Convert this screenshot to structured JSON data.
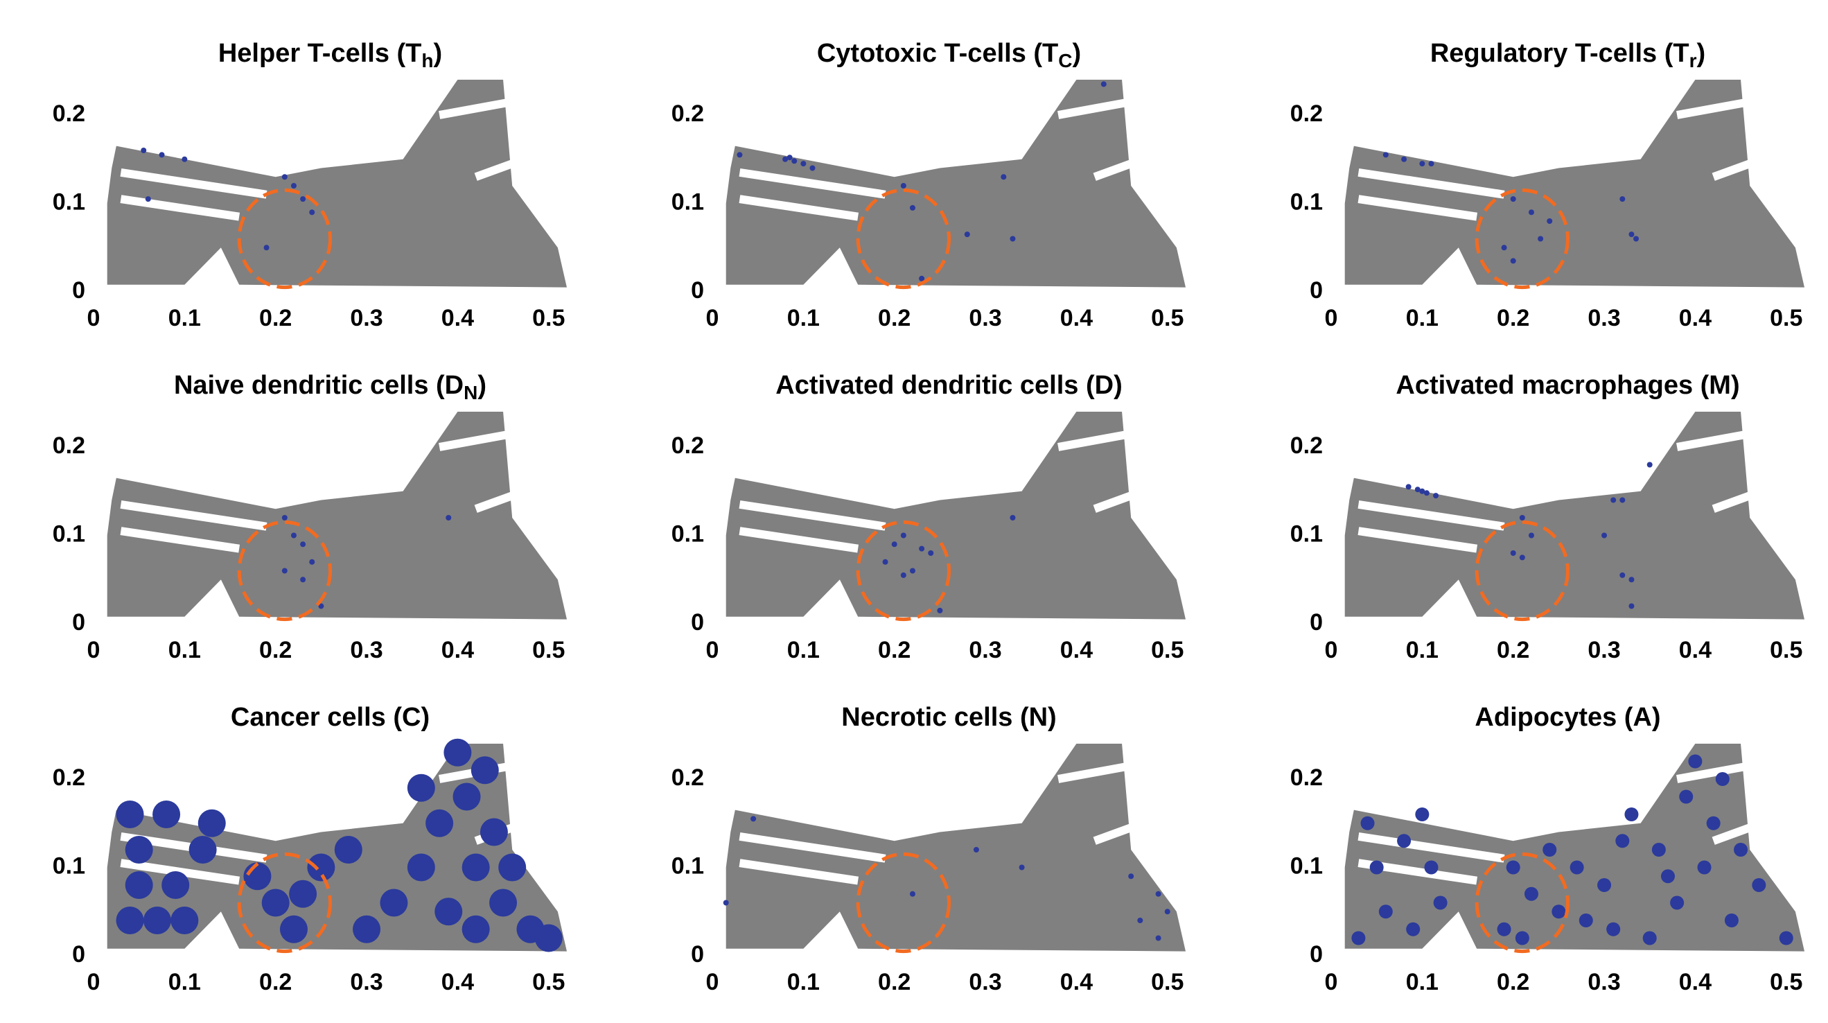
{
  "tissue": {
    "color": "#808080",
    "x": [
      0.015,
      0.1,
      0.14,
      0.16,
      0.52,
      0.51,
      0.46,
      0.45,
      0.4,
      0.34,
      0.25,
      0.2,
      0.025,
      0.02,
      0.015
    ],
    "y": [
      0.008,
      0.008,
      0.05,
      0.008,
      0.005,
      0.05,
      0.12,
      0.24,
      0.24,
      0.15,
      0.14,
      0.13,
      0.165,
      0.14,
      0.1
    ]
  },
  "chart_data": [
    {
      "type": "scatter",
      "title": [
        "Helper T-cells (T",
        "h",
        ")"
      ],
      "xlim": [
        0,
        0.52
      ],
      "ylim": [
        0,
        0.24
      ],
      "xticks": [
        0,
        0.1,
        0.2,
        0.3,
        0.4,
        0.5
      ],
      "yticks": [
        0,
        0.1,
        0.2
      ],
      "color": "#2b3a9c",
      "marker_size": 4,
      "annotation": {
        "cx": 0.21,
        "cy": 0.06,
        "rx": 0.05,
        "ry": 0.055,
        "color": "#f26b21"
      },
      "x": [
        0.055,
        0.075,
        0.1,
        0.06,
        0.22,
        0.23,
        0.24,
        0.19,
        0.21
      ],
      "y": [
        0.16,
        0.155,
        0.15,
        0.105,
        0.12,
        0.105,
        0.09,
        0.05,
        0.13
      ]
    },
    {
      "type": "scatter",
      "title": [
        "Cytotoxic T-cells (T",
        "C",
        ")"
      ],
      "xlim": [
        0,
        0.52
      ],
      "ylim": [
        0,
        0.24
      ],
      "xticks": [
        0,
        0.1,
        0.2,
        0.3,
        0.4,
        0.5
      ],
      "yticks": [
        0,
        0.1,
        0.2
      ],
      "color": "#2b3a9c",
      "marker_size": 4,
      "annotation": {
        "cx": 0.21,
        "cy": 0.06,
        "rx": 0.05,
        "ry": 0.055,
        "color": "#f26b21"
      },
      "x": [
        0.08,
        0.09,
        0.1,
        0.11,
        0.085,
        0.03,
        0.21,
        0.22,
        0.28,
        0.32,
        0.33,
        0.43,
        0.23
      ],
      "y": [
        0.15,
        0.148,
        0.145,
        0.14,
        0.152,
        0.155,
        0.12,
        0.095,
        0.065,
        0.13,
        0.06,
        0.235,
        0.015
      ]
    },
    {
      "type": "scatter",
      "title": [
        "Regulatory T-cells (T",
        "r",
        ")"
      ],
      "xlim": [
        0,
        0.52
      ],
      "ylim": [
        0,
        0.24
      ],
      "xticks": [
        0,
        0.1,
        0.2,
        0.3,
        0.4,
        0.5
      ],
      "yticks": [
        0,
        0.1,
        0.2
      ],
      "color": "#2b3a9c",
      "marker_size": 4,
      "annotation": {
        "cx": 0.21,
        "cy": 0.06,
        "rx": 0.05,
        "ry": 0.055,
        "color": "#f26b21"
      },
      "x": [
        0.06,
        0.08,
        0.1,
        0.11,
        0.2,
        0.22,
        0.23,
        0.19,
        0.24,
        0.32,
        0.33,
        0.335,
        0.2
      ],
      "y": [
        0.155,
        0.15,
        0.145,
        0.145,
        0.105,
        0.09,
        0.06,
        0.05,
        0.08,
        0.105,
        0.065,
        0.06,
        0.035
      ]
    },
    {
      "type": "scatter",
      "title": [
        "Naive dendritic cells (D",
        "N",
        ")"
      ],
      "xlim": [
        0,
        0.52
      ],
      "ylim": [
        0,
        0.24
      ],
      "xticks": [
        0,
        0.1,
        0.2,
        0.3,
        0.4,
        0.5
      ],
      "yticks": [
        0,
        0.1,
        0.2
      ],
      "color": "#2b3a9c",
      "marker_size": 4,
      "annotation": {
        "cx": 0.21,
        "cy": 0.06,
        "rx": 0.05,
        "ry": 0.055,
        "color": "#f26b21"
      },
      "x": [
        0.21,
        0.22,
        0.23,
        0.24,
        0.21,
        0.23,
        0.25,
        0.39
      ],
      "y": [
        0.12,
        0.1,
        0.09,
        0.07,
        0.06,
        0.05,
        0.02,
        0.12
      ]
    },
    {
      "type": "scatter",
      "title": [
        "Activated dendritic cells (D)"
      ],
      "xlim": [
        0,
        0.52
      ],
      "ylim": [
        0,
        0.24
      ],
      "xticks": [
        0,
        0.1,
        0.2,
        0.3,
        0.4,
        0.5
      ],
      "yticks": [
        0,
        0.1,
        0.2
      ],
      "color": "#2b3a9c",
      "marker_size": 4,
      "annotation": {
        "cx": 0.21,
        "cy": 0.06,
        "rx": 0.05,
        "ry": 0.055,
        "color": "#f26b21"
      },
      "x": [
        0.2,
        0.21,
        0.23,
        0.24,
        0.22,
        0.21,
        0.19,
        0.25,
        0.33
      ],
      "y": [
        0.09,
        0.1,
        0.085,
        0.08,
        0.06,
        0.055,
        0.07,
        0.015,
        0.12
      ]
    },
    {
      "type": "scatter",
      "title": [
        "Activated macrophages (M)"
      ],
      "xlim": [
        0,
        0.52
      ],
      "ylim": [
        0,
        0.24
      ],
      "xticks": [
        0,
        0.1,
        0.2,
        0.3,
        0.4,
        0.5
      ],
      "yticks": [
        0,
        0.1,
        0.2
      ],
      "color": "#2b3a9c",
      "marker_size": 4,
      "annotation": {
        "cx": 0.21,
        "cy": 0.06,
        "rx": 0.05,
        "ry": 0.055,
        "color": "#f26b21"
      },
      "x": [
        0.085,
        0.095,
        0.105,
        0.115,
        0.1,
        0.31,
        0.32,
        0.35,
        0.21,
        0.22,
        0.2,
        0.21,
        0.32,
        0.33,
        0.3,
        0.33
      ],
      "y": [
        0.155,
        0.152,
        0.148,
        0.145,
        0.15,
        0.14,
        0.14,
        0.18,
        0.12,
        0.1,
        0.08,
        0.075,
        0.055,
        0.05,
        0.1,
        0.02
      ]
    },
    {
      "type": "scatter",
      "title": [
        "Cancer cells (C)"
      ],
      "xlim": [
        0,
        0.52
      ],
      "ylim": [
        0,
        0.24
      ],
      "xticks": [
        0,
        0.1,
        0.2,
        0.3,
        0.4,
        0.5
      ],
      "yticks": [
        0,
        0.1,
        0.2
      ],
      "color": "#2b3a9c",
      "marker_size": 20,
      "annotation": {
        "cx": 0.21,
        "cy": 0.06,
        "rx": 0.05,
        "ry": 0.055,
        "color": "#f26b21"
      },
      "x": [
        0.04,
        0.07,
        0.1,
        0.05,
        0.09,
        0.12,
        0.05,
        0.08,
        0.04,
        0.13,
        0.2,
        0.23,
        0.22,
        0.18,
        0.25,
        0.28,
        0.3,
        0.33,
        0.36,
        0.39,
        0.42,
        0.45,
        0.48,
        0.5,
        0.38,
        0.41,
        0.43,
        0.4,
        0.44,
        0.46,
        0.36,
        0.42
      ],
      "y": [
        0.04,
        0.04,
        0.04,
        0.08,
        0.08,
        0.12,
        0.12,
        0.16,
        0.16,
        0.15,
        0.06,
        0.07,
        0.03,
        0.09,
        0.1,
        0.12,
        0.03,
        0.06,
        0.1,
        0.05,
        0.03,
        0.06,
        0.03,
        0.02,
        0.15,
        0.18,
        0.21,
        0.23,
        0.14,
        0.1,
        0.19,
        0.1
      ]
    },
    {
      "type": "scatter",
      "title": [
        "Necrotic cells (N)"
      ],
      "xlim": [
        0,
        0.52
      ],
      "ylim": [
        0,
        0.24
      ],
      "xticks": [
        0,
        0.1,
        0.2,
        0.3,
        0.4,
        0.5
      ],
      "yticks": [
        0,
        0.1,
        0.2
      ],
      "color": "#2b3a9c",
      "marker_size": 4,
      "annotation": {
        "cx": 0.21,
        "cy": 0.06,
        "rx": 0.05,
        "ry": 0.055,
        "color": "#f26b21"
      },
      "x": [
        0.045,
        0.015,
        0.29,
        0.22,
        0.46,
        0.47,
        0.49,
        0.5,
        0.34,
        0.49
      ],
      "y": [
        0.155,
        0.06,
        0.12,
        0.07,
        0.09,
        0.04,
        0.07,
        0.05,
        0.1,
        0.02
      ]
    },
    {
      "type": "scatter",
      "title": [
        "Adipocytes (A)"
      ],
      "xlim": [
        0,
        0.52
      ],
      "ylim": [
        0,
        0.24
      ],
      "xticks": [
        0,
        0.1,
        0.2,
        0.3,
        0.4,
        0.5
      ],
      "yticks": [
        0,
        0.1,
        0.2
      ],
      "color": "#2b3a9c",
      "marker_size": 10,
      "annotation": {
        "cx": 0.21,
        "cy": 0.06,
        "rx": 0.05,
        "ry": 0.055,
        "color": "#f26b21"
      },
      "x": [
        0.03,
        0.06,
        0.09,
        0.12,
        0.05,
        0.08,
        0.11,
        0.04,
        0.1,
        0.19,
        0.22,
        0.25,
        0.2,
        0.24,
        0.28,
        0.3,
        0.32,
        0.35,
        0.38,
        0.41,
        0.44,
        0.47,
        0.5,
        0.33,
        0.36,
        0.39,
        0.42,
        0.4,
        0.43,
        0.31,
        0.37,
        0.45,
        0.27,
        0.21
      ],
      "y": [
        0.02,
        0.05,
        0.03,
        0.06,
        0.1,
        0.13,
        0.1,
        0.15,
        0.16,
        0.03,
        0.07,
        0.05,
        0.1,
        0.12,
        0.04,
        0.08,
        0.13,
        0.02,
        0.06,
        0.1,
        0.04,
        0.08,
        0.02,
        0.16,
        0.12,
        0.18,
        0.15,
        0.22,
        0.2,
        0.03,
        0.09,
        0.12,
        0.1,
        0.02
      ]
    }
  ]
}
